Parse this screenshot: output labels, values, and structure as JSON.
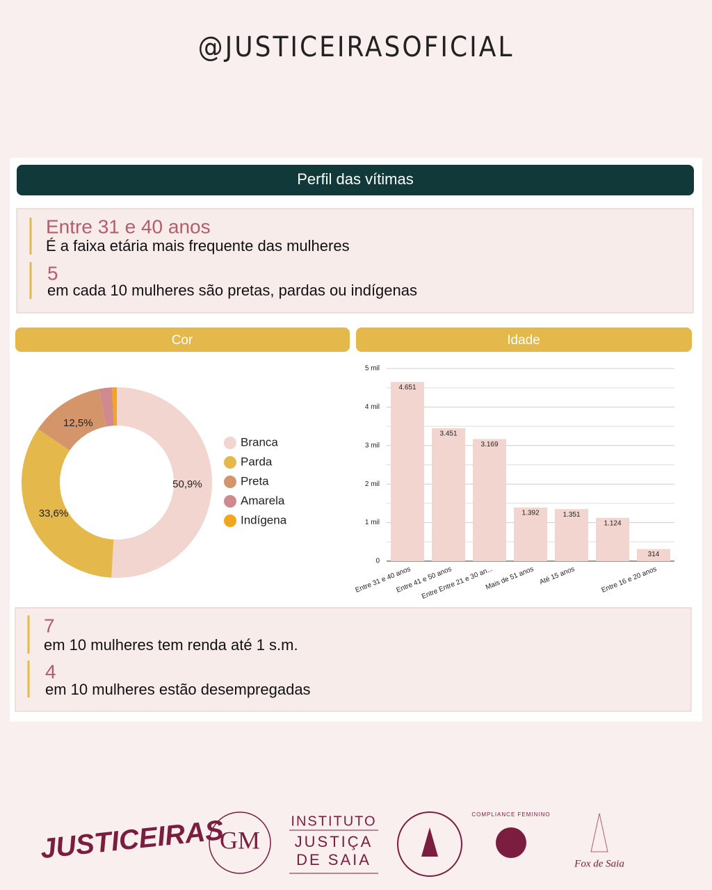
{
  "handle": "@JUSTICEIRASOFICIAL",
  "panel_title": "Perfil das vítimas",
  "stats_top": [
    {
      "value": "Entre 31 e 40 anos",
      "text": "É a faixa etária mais frequente das mulheres"
    },
    {
      "value": "5",
      "text": "em cada 10 mulheres são pretas, pardas ou indígenas"
    }
  ],
  "stats_bottom": [
    {
      "value": "7",
      "text": "em 10 mulheres tem renda até 1 s.m."
    },
    {
      "value": "4",
      "text": "em 10 mulheres estão desempregadas"
    }
  ],
  "chart_data": [
    {
      "type": "pie",
      "title": "Cor",
      "donut": true,
      "categories": [
        "Branca",
        "Parda",
        "Preta",
        "Amarela",
        "Indígena"
      ],
      "values": [
        50.9,
        33.6,
        12.5,
        2.2,
        0.8
      ],
      "value_labels": [
        "50,9%",
        "33,6%",
        "12,5%",
        null,
        null
      ],
      "colors": [
        "#f2d5cf",
        "#e4b84a",
        "#d4956a",
        "#d08a8e",
        "#f3a51c"
      ]
    },
    {
      "type": "bar",
      "title": "Idade",
      "categories": [
        "Entre 31 e 40 anos",
        "Entre 41 e 50 anos",
        "Entre Entre 21 e 30 an...",
        "Mais de 51 anos",
        "Até 15 anos",
        null,
        "Entre 16 e 20 anos"
      ],
      "values": [
        4651,
        3451,
        3169,
        1392,
        1351,
        1124,
        314
      ],
      "value_labels": [
        "4.651",
        "3.451",
        "3.169",
        "1.392",
        "1.351",
        "1.124",
        "314"
      ],
      "color": "#f2d5cf",
      "ylim": [
        0,
        5000
      ],
      "yticks": [
        0,
        {
          "value": 1000,
          "label": "1 mil"
        },
        {
          "value": 2000,
          "label": "2 mil"
        },
        {
          "value": 3000,
          "label": "3 mil"
        },
        {
          "value": 4000,
          "label": "4 mil"
        },
        {
          "value": 5000,
          "label": "5 mil"
        }
      ],
      "minor_yticks": [
        500,
        1500,
        2500,
        3500,
        4500
      ],
      "grid": true
    }
  ],
  "logos": [
    "JUSTICEIRAS",
    "INSTITUTO",
    "JUSTIÇA",
    "DE SAIA",
    "COMPLIANCE FEMININO",
    "Fox de Saia"
  ]
}
